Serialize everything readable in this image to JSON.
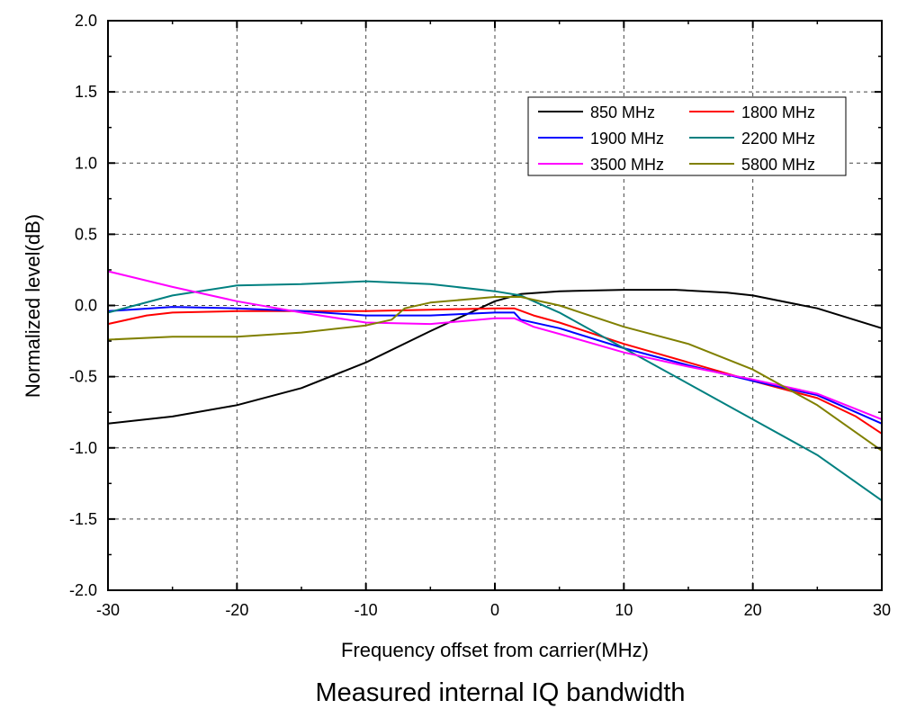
{
  "chart_data": {
    "type": "line",
    "title": "Measured internal IQ bandwidth",
    "xlabel": "Frequency offset from carrier(MHz)",
    "ylabel": "Normalized level(dB)",
    "xlim": [
      -30,
      30
    ],
    "ylim": [
      -2.0,
      2.0
    ],
    "xticks": [
      "-30",
      "-20",
      "-10",
      "0",
      "10",
      "20",
      "30"
    ],
    "yticks": [
      "-2.0",
      "-1.5",
      "-1.0",
      "-0.5",
      "0.0",
      "0.5",
      "1.0",
      "1.5",
      "2.0"
    ],
    "grid": true,
    "legend_position": "top-right",
    "series": [
      {
        "name": "850 MHz",
        "color": "#000000",
        "x": [
          -30,
          -25,
          -20,
          -15,
          -10,
          -5,
          0,
          2,
          5,
          10,
          14,
          18,
          20,
          25,
          30
        ],
        "y": [
          -0.83,
          -0.78,
          -0.7,
          -0.58,
          -0.4,
          -0.18,
          0.03,
          0.08,
          0.1,
          0.11,
          0.11,
          0.09,
          0.07,
          -0.02,
          -0.16
        ]
      },
      {
        "name": "1800 MHz",
        "color": "#ff0000",
        "x": [
          -30,
          -27,
          -25,
          -20,
          -10,
          -5,
          0,
          1.5,
          3,
          5,
          10,
          15,
          20,
          25,
          28,
          30
        ],
        "y": [
          -0.13,
          -0.07,
          -0.05,
          -0.04,
          -0.04,
          -0.03,
          -0.02,
          -0.02,
          -0.07,
          -0.12,
          -0.27,
          -0.4,
          -0.53,
          -0.65,
          -0.78,
          -0.9
        ]
      },
      {
        "name": "1900 MHz",
        "color": "#0000ff",
        "x": [
          -30,
          -25,
          -20,
          -15,
          -10,
          -5,
          0,
          1.5,
          2,
          5,
          10,
          15,
          20,
          25,
          30
        ],
        "y": [
          -0.04,
          -0.01,
          -0.02,
          -0.04,
          -0.07,
          -0.07,
          -0.05,
          -0.05,
          -0.1,
          -0.16,
          -0.3,
          -0.42,
          -0.53,
          -0.63,
          -0.83
        ]
      },
      {
        "name": "2200 MHz",
        "color": "#008080",
        "x": [
          -30,
          -25,
          -20,
          -15,
          -10,
          -5,
          -1,
          0,
          2,
          5,
          10,
          15,
          20,
          25,
          30
        ],
        "y": [
          -0.05,
          0.07,
          0.14,
          0.15,
          0.17,
          0.15,
          0.11,
          0.1,
          0.07,
          -0.05,
          -0.3,
          -0.55,
          -0.8,
          -1.05,
          -1.37
        ]
      },
      {
        "name": "3500 MHz",
        "color": "#ff00ff",
        "x": [
          -30,
          -25,
          -20,
          -15,
          -10,
          -5,
          0,
          1.5,
          3,
          5,
          10,
          15,
          20,
          25,
          30
        ],
        "y": [
          0.24,
          0.13,
          0.03,
          -0.05,
          -0.12,
          -0.13,
          -0.09,
          -0.09,
          -0.15,
          -0.2,
          -0.33,
          -0.43,
          -0.52,
          -0.62,
          -0.8
        ]
      },
      {
        "name": "5800 MHz",
        "color": "#808000",
        "x": [
          -30,
          -25,
          -20,
          -15,
          -10,
          -8,
          -7,
          -5,
          0,
          2,
          5,
          10,
          15,
          20,
          25,
          30
        ],
        "y": [
          -0.24,
          -0.22,
          -0.22,
          -0.19,
          -0.14,
          -0.1,
          -0.02,
          0.02,
          0.06,
          0.06,
          0.0,
          -0.15,
          -0.27,
          -0.45,
          -0.7,
          -1.02
        ]
      }
    ]
  }
}
